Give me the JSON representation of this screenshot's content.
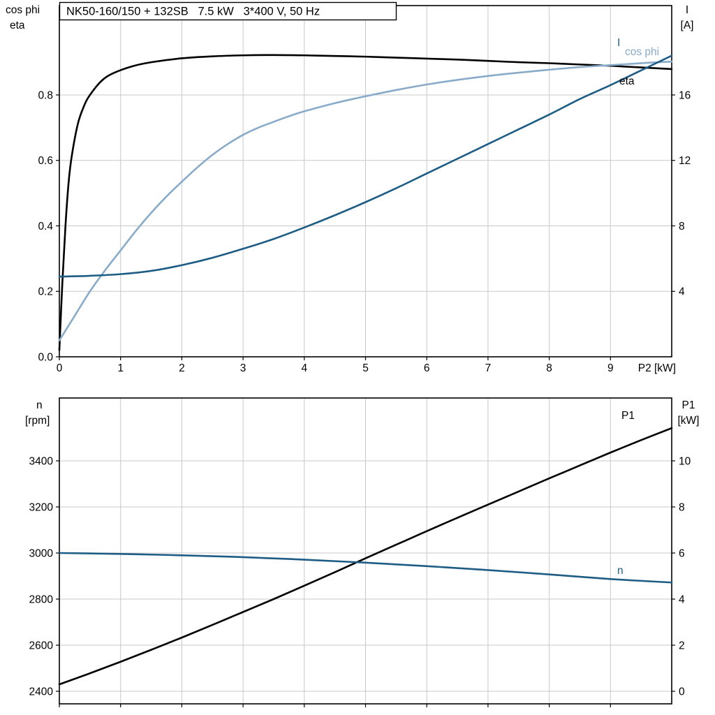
{
  "header": {
    "title": "NK50-160/150 + 132SB   7.5 kW   3*400 V, 50 Hz"
  },
  "charts": {
    "top": {
      "left_axis_title_line1": "cos phi",
      "left_axis_title_line2": "eta",
      "right_axis_title_line1": "I",
      "right_axis_title_line2": "[A]",
      "x_axis_title": "P2 [kW]",
      "curve_label_I": "I",
      "curve_label_cosphi": "cos phi",
      "curve_label_eta": "eta"
    },
    "bottom": {
      "left_axis_title_line1": "n",
      "left_axis_title_line2": "[rpm]",
      "right_axis_title_line1": "P1",
      "right_axis_title_line2": "[kW]",
      "curve_label_P1": "P1",
      "curve_label_n": "n"
    }
  },
  "colors": {
    "black": "#000000",
    "dark_blue": "#1d5c85",
    "light_blue": "#88abc9",
    "grid": "#c9c9c9"
  },
  "chart_data": [
    {
      "type": "line",
      "title": "NK50-160/150 + 132SB 7.5 kW 3*400 V, 50 Hz",
      "grid": true,
      "legend_position": "inline-right",
      "x": {
        "label": "P2 [kW]",
        "lim": [
          0,
          10
        ],
        "ticks": [
          0,
          1,
          2,
          3,
          4,
          5,
          6,
          7,
          8,
          9
        ],
        "tick_labels": [
          "0",
          "1",
          "2",
          "3",
          "4",
          "5",
          "6",
          "7",
          "8",
          "9"
        ]
      },
      "y_left": {
        "label": "cos phi / eta",
        "lim": [
          0,
          1.073
        ],
        "ticks": [
          0,
          0.2,
          0.4,
          0.6,
          0.8
        ],
        "tick_labels": [
          "0.0",
          "0.2",
          "0.4",
          "0.6",
          "0.8"
        ]
      },
      "y_right": {
        "label": "I [A]",
        "lim": [
          0,
          21.46
        ],
        "ticks": [
          4,
          8,
          12,
          16
        ],
        "tick_labels": [
          "4",
          "8",
          "12",
          "16"
        ]
      },
      "series": [
        {
          "name": "eta",
          "axis": "left",
          "color": "#000000",
          "points": [
            [
              0,
              0.02
            ],
            [
              0.05,
              0.23
            ],
            [
              0.1,
              0.4
            ],
            [
              0.15,
              0.53
            ],
            [
              0.2,
              0.61
            ],
            [
              0.3,
              0.71
            ],
            [
              0.4,
              0.765
            ],
            [
              0.5,
              0.8
            ],
            [
              0.7,
              0.845
            ],
            [
              0.9,
              0.868
            ],
            [
              1.2,
              0.888
            ],
            [
              1.5,
              0.9
            ],
            [
              2,
              0.912
            ],
            [
              2.5,
              0.918
            ],
            [
              3,
              0.921
            ],
            [
              3.5,
              0.922
            ],
            [
              4,
              0.921
            ],
            [
              4.5,
              0.919
            ],
            [
              5,
              0.917
            ],
            [
              5.5,
              0.914
            ],
            [
              6,
              0.911
            ],
            [
              6.5,
              0.908
            ],
            [
              7,
              0.904
            ],
            [
              7.5,
              0.9
            ],
            [
              8,
              0.897
            ],
            [
              8.5,
              0.893
            ],
            [
              9,
              0.889
            ],
            [
              9.5,
              0.884
            ],
            [
              10,
              0.879
            ]
          ]
        },
        {
          "name": "cos phi",
          "axis": "left",
          "color": "#88abc9",
          "points": [
            [
              0,
              0.05
            ],
            [
              0.25,
              0.125
            ],
            [
              0.5,
              0.2
            ],
            [
              0.75,
              0.265
            ],
            [
              1,
              0.325
            ],
            [
              1.25,
              0.385
            ],
            [
              1.5,
              0.44
            ],
            [
              1.75,
              0.49
            ],
            [
              2,
              0.535
            ],
            [
              2.25,
              0.578
            ],
            [
              2.5,
              0.617
            ],
            [
              2.75,
              0.65
            ],
            [
              3,
              0.678
            ],
            [
              3.25,
              0.7
            ],
            [
              3.5,
              0.718
            ],
            [
              3.75,
              0.735
            ],
            [
              4,
              0.75
            ],
            [
              4.5,
              0.775
            ],
            [
              5,
              0.796
            ],
            [
              5.5,
              0.815
            ],
            [
              6,
              0.832
            ],
            [
              6.5,
              0.846
            ],
            [
              7,
              0.858
            ],
            [
              7.5,
              0.868
            ],
            [
              8,
              0.877
            ],
            [
              8.5,
              0.885
            ],
            [
              9,
              0.891
            ],
            [
              9.5,
              0.897
            ],
            [
              10,
              0.902
            ]
          ]
        },
        {
          "name": "I",
          "axis": "right",
          "color": "#1d5c85",
          "points": [
            [
              0,
              4.9
            ],
            [
              0.5,
              4.95
            ],
            [
              1,
              5.05
            ],
            [
              1.5,
              5.25
            ],
            [
              2,
              5.6
            ],
            [
              2.5,
              6.05
            ],
            [
              3,
              6.6
            ],
            [
              3.5,
              7.2
            ],
            [
              4,
              7.9
            ],
            [
              4.5,
              8.65
            ],
            [
              5,
              9.45
            ],
            [
              5.5,
              10.3
            ],
            [
              6,
              11.2
            ],
            [
              6.5,
              12.1
            ],
            [
              7,
              13.0
            ],
            [
              7.5,
              13.9
            ],
            [
              8,
              14.8
            ],
            [
              8.5,
              15.75
            ],
            [
              9,
              16.6
            ],
            [
              9.5,
              17.5
            ],
            [
              10,
              18.4
            ]
          ]
        }
      ]
    },
    {
      "type": "line",
      "title": "",
      "grid": true,
      "legend_position": "inline-right",
      "x": {
        "label": "",
        "lim": [
          0,
          10
        ],
        "ticks": [
          0,
          1,
          2,
          3,
          4,
          5,
          6,
          7,
          8,
          9
        ],
        "tick_labels": [
          "",
          "",
          "",
          "",
          "",
          "",
          "",
          "",
          "",
          ""
        ]
      },
      "y_left": {
        "label": "n [rpm]",
        "lim": [
          2345.5,
          3672.7
        ],
        "ticks": [
          2400,
          2600,
          2800,
          3000,
          3200,
          3400
        ],
        "tick_labels": [
          "2400",
          "2600",
          "2800",
          "3000",
          "3200",
          "3400"
        ]
      },
      "y_right": {
        "label": "P1 [kW]",
        "lim": [
          -0.545,
          12.727
        ],
        "ticks": [
          0,
          2,
          4,
          6,
          8,
          10
        ],
        "tick_labels": [
          "0",
          "2",
          "4",
          "6",
          "8",
          "10"
        ]
      },
      "series": [
        {
          "name": "P1",
          "axis": "right",
          "color": "#000000",
          "points": [
            [
              0,
              0.3
            ],
            [
              0.5,
              0.78
            ],
            [
              1,
              1.28
            ],
            [
              1.5,
              1.8
            ],
            [
              2,
              2.33
            ],
            [
              2.5,
              2.88
            ],
            [
              3,
              3.44
            ],
            [
              3.5,
              4.0
            ],
            [
              4,
              4.58
            ],
            [
              4.5,
              5.17
            ],
            [
              5,
              5.77
            ],
            [
              5.5,
              6.36
            ],
            [
              6,
              6.95
            ],
            [
              6.5,
              7.53
            ],
            [
              7,
              8.1
            ],
            [
              7.5,
              8.67
            ],
            [
              8,
              9.24
            ],
            [
              8.5,
              9.8
            ],
            [
              9,
              10.36
            ],
            [
              9.5,
              10.9
            ],
            [
              10,
              11.42
            ]
          ]
        },
        {
          "name": "n",
          "axis": "left",
          "color": "#1d5c85",
          "points": [
            [
              0,
              3000
            ],
            [
              1,
              2996
            ],
            [
              2,
              2990
            ],
            [
              3,
              2982
            ],
            [
              4,
              2971
            ],
            [
              5,
              2958
            ],
            [
              6,
              2943
            ],
            [
              7,
              2926
            ],
            [
              8,
              2907
            ],
            [
              9,
              2887
            ],
            [
              10,
              2872
            ]
          ]
        }
      ]
    }
  ]
}
